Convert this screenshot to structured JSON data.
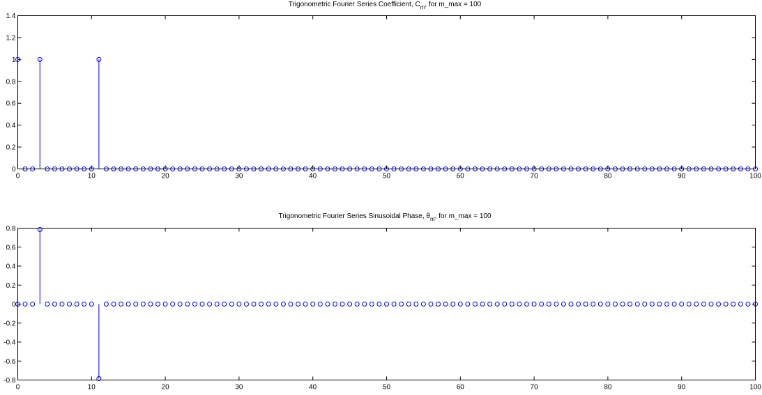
{
  "colors": {
    "stem": "#0000ff",
    "axis": "#000000",
    "background": "#ffffff"
  },
  "chart_data": [
    {
      "type": "stem",
      "title_main": "Trigonometric Fourier Series Coefficient, C",
      "title_sub": "m",
      "title_tail": ", for m_max = 100",
      "xlabel": "",
      "ylabel": "",
      "xlim": [
        0,
        100
      ],
      "ylim": [
        0,
        1.4
      ],
      "xticks": [
        0,
        10,
        20,
        30,
        40,
        50,
        60,
        70,
        80,
        90,
        100
      ],
      "xtick_labels": [
        "0",
        "10",
        "20",
        "30",
        "40",
        "50",
        "60",
        "70",
        "80",
        "90",
        "100"
      ],
      "yticks": [
        0,
        0.2,
        0.4,
        0.6,
        0.8,
        1,
        1.2,
        1.4
      ],
      "ytick_labels": [
        "0",
        "0.2",
        "0.4",
        "0.6",
        "0.8",
        "1",
        "1.2",
        "1.4"
      ],
      "grid": false,
      "x_range": [
        0,
        100
      ],
      "nonzero_points": [
        {
          "x": 0,
          "y": 1
        },
        {
          "x": 3,
          "y": 1
        },
        {
          "x": 11,
          "y": 1
        }
      ],
      "default_value": 0
    },
    {
      "type": "stem",
      "title_main": "Trigonometric Fourier Series Sinusoidal Phase, θ",
      "title_sub": "m",
      "title_tail": ", for m_max = 100",
      "xlabel": "",
      "ylabel": "",
      "xlim": [
        0,
        100
      ],
      "ylim": [
        -0.8,
        0.8
      ],
      "xticks": [
        0,
        10,
        20,
        30,
        40,
        50,
        60,
        70,
        80,
        90,
        100
      ],
      "xtick_labels": [
        "0",
        "10",
        "20",
        "30",
        "40",
        "50",
        "60",
        "70",
        "80",
        "90",
        "100"
      ],
      "yticks": [
        -0.8,
        -0.6,
        -0.4,
        -0.2,
        0,
        0.2,
        0.4,
        0.6,
        0.8
      ],
      "ytick_labels": [
        "-0.8",
        "-0.6",
        "-0.4",
        "-0.2",
        "0",
        "0.2",
        "0.4",
        "0.6",
        "0.8"
      ],
      "grid": false,
      "x_range": [
        0,
        100
      ],
      "nonzero_points": [
        {
          "x": 3,
          "y": 0.785
        },
        {
          "x": 11,
          "y": -0.785
        }
      ],
      "default_value": 0
    }
  ]
}
